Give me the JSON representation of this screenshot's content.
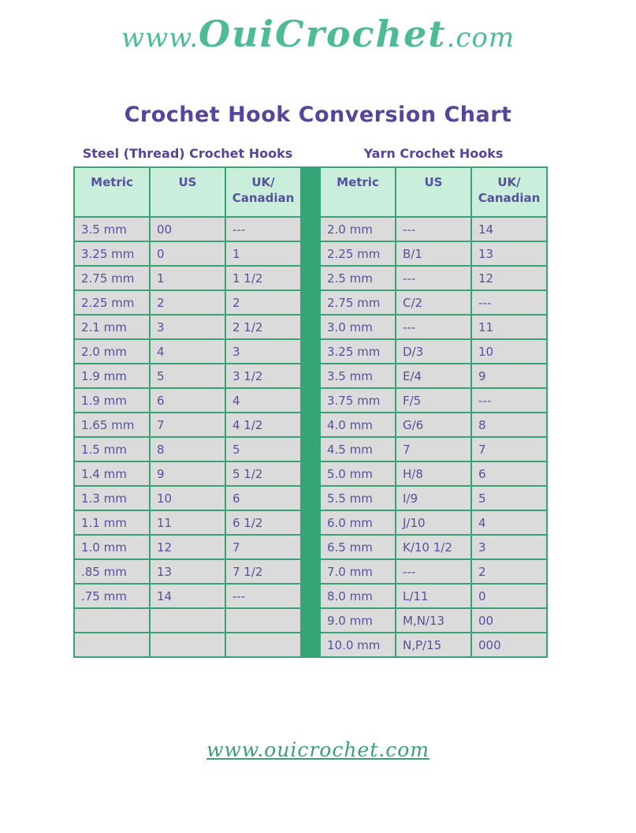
{
  "logo": {
    "prefix": "www.",
    "main": "OuiCrochet",
    "suffix": ".com"
  },
  "title": "Crochet Hook Conversion Chart",
  "tables": [
    {
      "title": "Steel (Thread) Crochet Hooks",
      "headers": [
        "Metric",
        "US",
        "UK/\nCanadian"
      ],
      "rows": [
        [
          "3.5 mm",
          "00",
          "---"
        ],
        [
          "3.25 mm",
          "0",
          "1"
        ],
        [
          "2.75 mm",
          "1",
          "1 1/2"
        ],
        [
          "2.25 mm",
          "2",
          "2"
        ],
        [
          "2.1 mm",
          "3",
          "2 1/2"
        ],
        [
          "2.0 mm",
          "4",
          "3"
        ],
        [
          "1.9 mm",
          "5",
          "3 1/2"
        ],
        [
          "1.9 mm",
          "6",
          "4"
        ],
        [
          "1.65 mm",
          "7",
          "4 1/2"
        ],
        [
          "1.5 mm",
          "8",
          "5"
        ],
        [
          "1.4 mm",
          "9",
          "5 1/2"
        ],
        [
          "1.3 mm",
          "10",
          "6"
        ],
        [
          "1.1 mm",
          "11",
          "6 1/2"
        ],
        [
          "1.0 mm",
          "12",
          "7"
        ],
        [
          ".85 mm",
          "13",
          "7 1/2"
        ],
        [
          ".75 mm",
          "14",
          "---"
        ],
        [
          "",
          "",
          ""
        ],
        [
          "",
          "",
          ""
        ]
      ]
    },
    {
      "title": "Yarn Crochet Hooks",
      "headers": [
        "Metric",
        "US",
        "UK/\nCanadian"
      ],
      "rows": [
        [
          "2.0 mm",
          "---",
          "14"
        ],
        [
          "2.25 mm",
          "B/1",
          "13"
        ],
        [
          "2.5 mm",
          "---",
          "12"
        ],
        [
          "2.75 mm",
          "C/2",
          "---"
        ],
        [
          "3.0 mm",
          "---",
          "11"
        ],
        [
          "3.25 mm",
          "D/3",
          "10"
        ],
        [
          "3.5 mm",
          "E/4",
          "9"
        ],
        [
          "3.75 mm",
          "F/5",
          "---"
        ],
        [
          "4.0 mm",
          "G/6",
          "8"
        ],
        [
          "4.5 mm",
          "7",
          "7"
        ],
        [
          "5.0 mm",
          "H/8",
          "6"
        ],
        [
          "5.5 mm",
          "I/9",
          "5"
        ],
        [
          "6.0 mm",
          "J/10",
          "4"
        ],
        [
          "6.5 mm",
          "K/10 1/2",
          "3"
        ],
        [
          "7.0 mm",
          "---",
          "2"
        ],
        [
          "8.0 mm",
          "L/11",
          "0"
        ],
        [
          "9.0 mm",
          "M,N/13",
          "00"
        ],
        [
          "10.0 mm",
          "N,P/15",
          "000"
        ]
      ]
    }
  ],
  "footer": {
    "link": "www.ouicrochet.com"
  },
  "colors": {
    "accent_green": "#35A476",
    "border_green": "#3AA376",
    "header_bg": "#C9EFDC",
    "row_bg": "#DBDBDB",
    "text_purple": "#57449B",
    "cell_text_purple": "#57509C",
    "logo_green": "#4CBB96",
    "link_green": "#3E9E77"
  }
}
